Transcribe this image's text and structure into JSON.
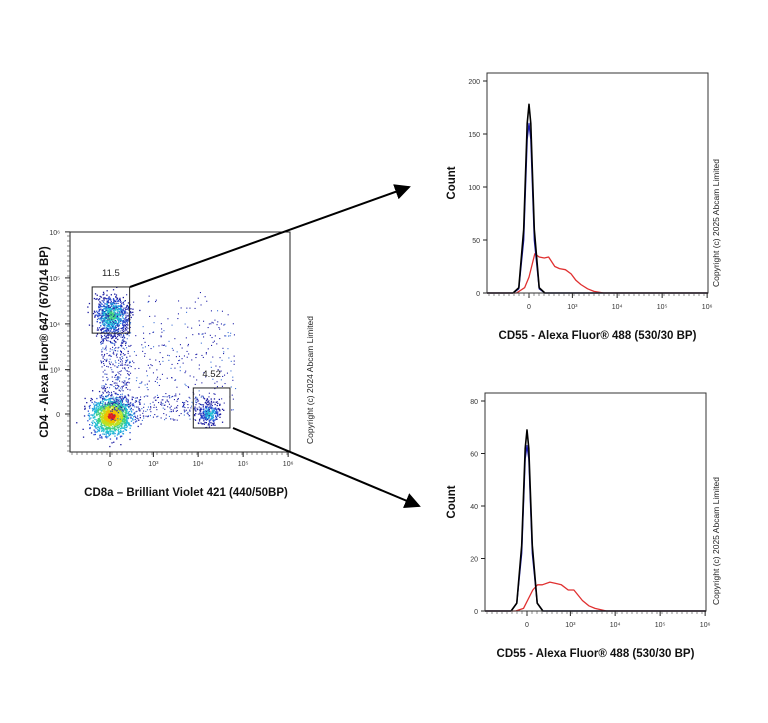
{
  "chart_data": [
    {
      "type": "scatter",
      "xlabel": "CD8a – Brilliant Violet 421 (440/50BP)",
      "ylabel": "CD4 - Alexa Fluor® 647 (670/14 BP)",
      "x_scale": "biexponential",
      "y_scale": "biexponential",
      "xticks": [
        "0",
        "10³",
        "10⁴",
        "10⁵",
        "10⁶"
      ],
      "yticks": [
        "0",
        "10³",
        "10⁴",
        "10⁵",
        "10⁶"
      ],
      "xlim": [
        -800,
        1000000
      ],
      "ylim": [
        -1000,
        1000000
      ],
      "copyright": "Copyright (c) 2024 Abcam Limited",
      "populations": [
        {
          "center": [
            10,
            -20
          ],
          "spread": "dense"
        },
        {
          "center": [
            10,
            15500
          ],
          "spread": "medium"
        },
        {
          "center": [
            17500,
            10
          ],
          "spread": "small"
        }
      ],
      "gates": [
        {
          "label": "11.5",
          "x": [
            -230,
            260
          ],
          "y": [
            6300,
            63600
          ]
        },
        {
          "label": "4.52",
          "x": [
            7800,
            51000
          ],
          "y": [
            -167,
            375
          ]
        }
      ],
      "colors": {
        "low": "#1a1aa0",
        "mid": "#22c0d0",
        "high": "#e02020"
      }
    },
    {
      "type": "line",
      "subtype": "histogram",
      "xlabel": "CD55 - Alexa Fluor® 488 (530/30 BP)",
      "ylabel": "Count",
      "x_scale": "biexponential",
      "xticks": [
        "0",
        "10³",
        "10⁴",
        "10⁵",
        "10⁶"
      ],
      "yticks": [
        "0",
        "50",
        "100",
        "150",
        "200"
      ],
      "ylim": [
        0,
        200
      ],
      "copyright": "Copyright (c) 2025 Abcam Limited",
      "series": [
        {
          "color": "#e03030",
          "points": [
            [
              -150,
              0
            ],
            [
              -50,
              5
            ],
            [
              0,
              15
            ],
            [
              66,
              37
            ],
            [
              120,
              34
            ],
            [
              190,
              33
            ],
            [
              260,
              34
            ],
            [
              383,
              25
            ],
            [
              500,
              23
            ],
            [
              690,
              22
            ],
            [
              937,
              18
            ],
            [
              1200,
              12
            ],
            [
              1550,
              8
            ],
            [
              2200,
              4
            ],
            [
              3060,
              1.5
            ],
            [
              5000,
              0
            ]
          ]
        },
        {
          "color": "#1a1aa8",
          "points": [
            [
              -200,
              0
            ],
            [
              -120,
              4
            ],
            [
              -60,
              50
            ],
            [
              -20,
              145
            ],
            [
              0,
              160
            ],
            [
              20,
              145
            ],
            [
              60,
              50
            ],
            [
              120,
              4
            ],
            [
              200,
              0
            ]
          ]
        },
        {
          "color": "#000000",
          "points": [
            [
              -200,
              0
            ],
            [
              -120,
              5
            ],
            [
              -60,
              60
            ],
            [
              -20,
              160
            ],
            [
              0,
              178
            ],
            [
              20,
              160
            ],
            [
              60,
              60
            ],
            [
              120,
              5
            ],
            [
              200,
              0
            ]
          ]
        }
      ]
    },
    {
      "type": "line",
      "subtype": "histogram",
      "xlabel": "CD55 - Alexa Fluor® 488 (530/30 BP)",
      "ylabel": "Count",
      "x_scale": "biexponential",
      "xticks": [
        "0",
        "10³",
        "10⁴",
        "10⁵",
        "10⁶"
      ],
      "yticks": [
        "0",
        "20",
        "40",
        "60",
        "80"
      ],
      "ylim": [
        0,
        80
      ],
      "copyright": "Copyright (c) 2025 Abcam Limited",
      "series": [
        {
          "color": "#e03030",
          "points": [
            [
              -135,
              0
            ],
            [
              -40,
              1
            ],
            [
              66,
              8
            ],
            [
              124,
              10
            ],
            [
              190,
              10
            ],
            [
              320,
              11
            ],
            [
              450,
              10.5
            ],
            [
              620,
              10
            ],
            [
              890,
              8
            ],
            [
              1200,
              8
            ],
            [
              1870,
              4
            ],
            [
              2600,
              2
            ],
            [
              3570,
              1
            ],
            [
              6400,
              0
            ]
          ]
        },
        {
          "color": "#1a1aa8",
          "points": [
            [
              -200,
              0
            ],
            [
              -120,
              3
            ],
            [
              -60,
              22
            ],
            [
              -20,
              58
            ],
            [
              0,
              63
            ],
            [
              20,
              58
            ],
            [
              60,
              22
            ],
            [
              120,
              3
            ],
            [
              200,
              0
            ]
          ]
        },
        {
          "color": "#000000",
          "points": [
            [
              -200,
              0
            ],
            [
              -120,
              3
            ],
            [
              -60,
              25
            ],
            [
              -20,
              62
            ],
            [
              0,
              69
            ],
            [
              20,
              62
            ],
            [
              60,
              25
            ],
            [
              120,
              3
            ],
            [
              200,
              0
            ]
          ]
        }
      ]
    }
  ]
}
